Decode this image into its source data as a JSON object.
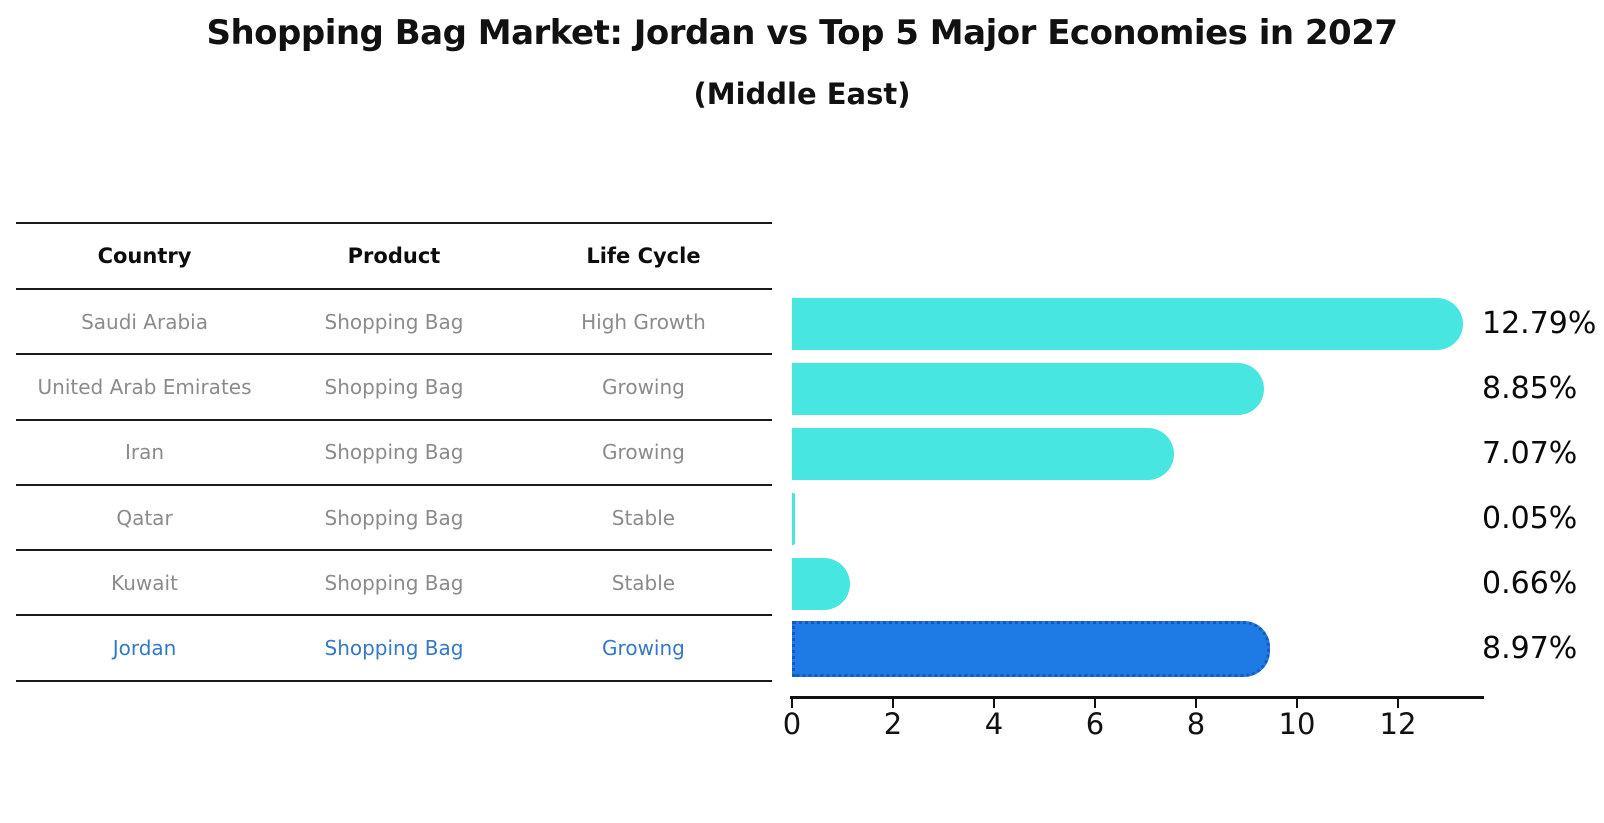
{
  "title": "Shopping Bag Market: Jordan vs Top 5 Major Economies in 2027",
  "subtitle": "(Middle East)",
  "table": {
    "headers": [
      "Country",
      "Product",
      "Life Cycle"
    ],
    "rows": [
      {
        "country": "Saudi Arabia",
        "product": "Shopping Bag",
        "life_cycle": "High Growth",
        "highlight": false
      },
      {
        "country": "United Arab Emirates",
        "product": "Shopping Bag",
        "life_cycle": "Growing",
        "highlight": false
      },
      {
        "country": "Iran",
        "product": "Shopping Bag",
        "life_cycle": "Growing",
        "highlight": false
      },
      {
        "country": "Qatar",
        "product": "Shopping Bag",
        "life_cycle": "Stable",
        "highlight": false
      },
      {
        "country": "Kuwait",
        "product": "Shopping Bag",
        "life_cycle": "Stable",
        "highlight": false
      },
      {
        "country": "Jordan",
        "product": "Shopping Bag",
        "life_cycle": "Growing",
        "highlight": true
      }
    ]
  },
  "chart_data": {
    "type": "bar",
    "orientation": "horizontal",
    "title": "Shopping Bag Market: Jordan vs Top 5 Major Economies in 2027",
    "subtitle": "(Middle East)",
    "categories": [
      "Saudi Arabia",
      "United Arab Emirates",
      "Iran",
      "Qatar",
      "Kuwait",
      "Jordan"
    ],
    "values": [
      12.79,
      8.85,
      7.07,
      0.05,
      0.66,
      8.97
    ],
    "value_labels": [
      "12.79%",
      "8.85%",
      "7.07%",
      "0.05%",
      "0.66%",
      "8.97%"
    ],
    "x_ticks": [
      0,
      2,
      4,
      6,
      8,
      10,
      12
    ],
    "xlim": [
      0,
      13.7
    ],
    "xlabel": "",
    "ylabel": "",
    "grid": false,
    "legend": false,
    "highlight_index": 5
  },
  "colors": {
    "bar": "#48E6E1",
    "highlight_bar": "#1E7AE4",
    "highlight_border": "#1659C2",
    "highlight_text": "#3478C8",
    "row_text": "#8B8B8B",
    "header_text": "#0C0C0C",
    "axis": "#111111"
  }
}
